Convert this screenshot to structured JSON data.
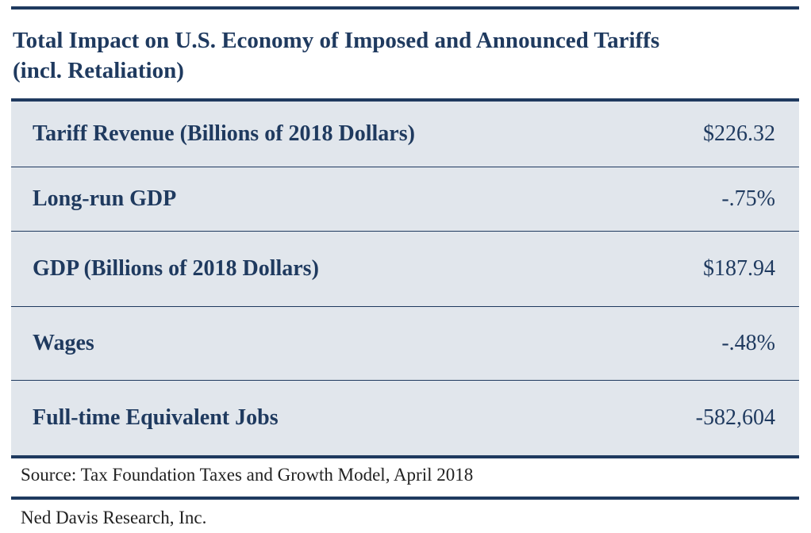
{
  "chart_data": {
    "type": "table",
    "title": "Total Impact on U.S. Economy of Imposed and Announced Tariffs (incl. Retaliation)",
    "title_lines": [
      "Total Impact on U.S. Economy of Imposed and Announced Tariffs",
      "(incl. Retaliation)"
    ],
    "rows": [
      {
        "label": "Tariff Revenue (Billions of 2018 Dollars)",
        "value": "$226.32"
      },
      {
        "label": "Long-run GDP",
        "value": "-.75%"
      },
      {
        "label": "GDP (Billions of 2018 Dollars)",
        "value": "$187.94"
      },
      {
        "label": "Wages",
        "value": "-.48%"
      },
      {
        "label": "Full-time Equivalent Jobs",
        "value": "-582,604"
      }
    ],
    "source": "Source: Tax Foundation Taxes and Growth Model, April 2018",
    "credit": "Ned Davis Research, Inc."
  },
  "colors": {
    "navy": "#1f3a5f",
    "table_fill": "#e1e6ec"
  }
}
